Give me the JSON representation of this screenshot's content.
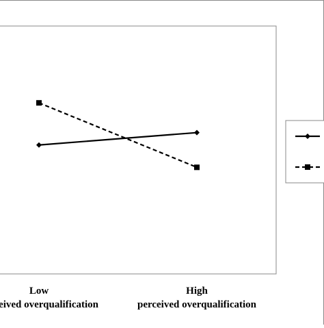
{
  "chart_data": {
    "type": "line",
    "categories": [
      "Low",
      "High"
    ],
    "category_sublabels": [
      "perceived overqualification",
      "perceived overqualification"
    ],
    "series": [
      {
        "values": [
          3.6,
          3.85
        ],
        "line": "solid",
        "marker": "diamond",
        "color": "#000000"
      },
      {
        "values": [
          4.45,
          3.15
        ],
        "line": "dashed",
        "marker": "square",
        "color": "#000000"
      }
    ],
    "ylim": [
      1,
      6
    ],
    "grid": false,
    "legend": "right",
    "xlabel": "",
    "ylabel": "",
    "title": ""
  }
}
